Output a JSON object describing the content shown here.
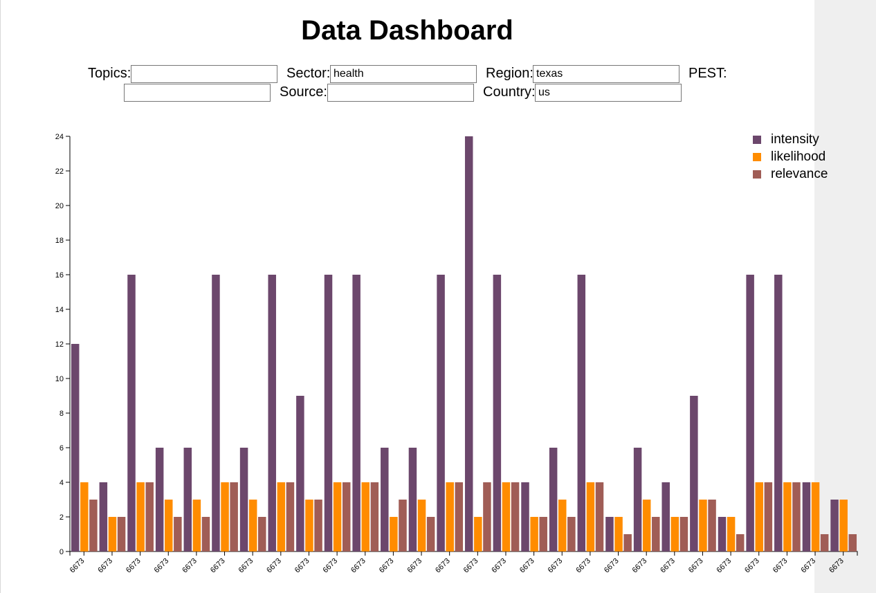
{
  "page": {
    "title": "Data Dashboard"
  },
  "filters": {
    "topics": {
      "label": "Topics:",
      "value": ""
    },
    "sector": {
      "label": "Sector:",
      "value": "health"
    },
    "region": {
      "label": "Region:",
      "value": "texas"
    },
    "pest": {
      "label": "PEST:",
      "value": ""
    },
    "source": {
      "label": "Source:",
      "value": ""
    },
    "country": {
      "label": "Country:",
      "value": "us"
    }
  },
  "colors": {
    "intensity": "#6c476c",
    "likelihood": "#ff8c00",
    "relevance": "#a05d56"
  },
  "chart_data": {
    "type": "bar",
    "categories": [
      "6673",
      "6673",
      "6673",
      "6673",
      "6673",
      "6673",
      "6673",
      "6673",
      "6673",
      "6673",
      "6673",
      "6673",
      "6673",
      "6673",
      "6673",
      "6673",
      "6673",
      "6673",
      "6673",
      "6673",
      "6673",
      "6673",
      "6673",
      "6673",
      "6673",
      "6673",
      "6673",
      "6673"
    ],
    "series": [
      {
        "name": "intensity",
        "values": [
          12,
          4,
          16,
          6,
          6,
          16,
          6,
          16,
          9,
          16,
          16,
          6,
          6,
          16,
          24,
          16,
          4,
          6,
          16,
          2,
          6,
          4,
          9,
          2,
          16,
          16,
          4,
          3
        ]
      },
      {
        "name": "likelihood",
        "values": [
          4,
          2,
          4,
          3,
          3,
          4,
          3,
          4,
          3,
          4,
          4,
          2,
          3,
          4,
          2,
          4,
          2,
          3,
          4,
          2,
          3,
          2,
          3,
          2,
          4,
          4,
          4,
          3
        ]
      },
      {
        "name": "relevance",
        "values": [
          3,
          2,
          4,
          2,
          2,
          4,
          2,
          4,
          3,
          4,
          4,
          3,
          2,
          4,
          4,
          4,
          2,
          2,
          4,
          1,
          2,
          2,
          3,
          1,
          4,
          4,
          1,
          1
        ]
      }
    ],
    "y_ticks": [
      "0",
      "2",
      "4",
      "6",
      "8",
      "10",
      "12",
      "14",
      "16",
      "18",
      "20",
      "22",
      "24"
    ],
    "ylim": [
      0,
      24
    ],
    "grid": false,
    "legend_position": "top-right"
  }
}
